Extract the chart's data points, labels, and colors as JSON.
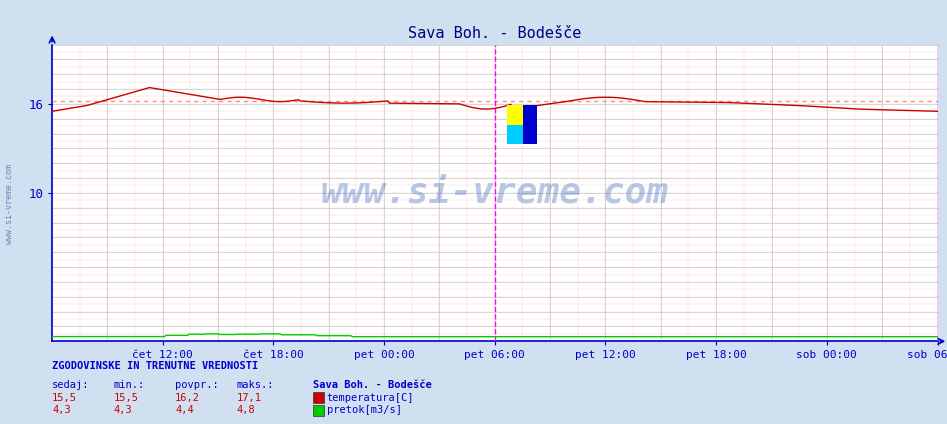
{
  "title": "Sava Boh. - Bodešče",
  "title_color": "#000080",
  "bg_color": "#d0e0f0",
  "plot_bg_color": "#ffffff",
  "grid_color_gray": "#c8c8c8",
  "grid_color_pink": "#ffcccc",
  "x_tick_labels": [
    "čet 12:00",
    "čet 18:00",
    "pet 00:00",
    "pet 06:00",
    "pet 12:00",
    "pet 18:00",
    "sob 00:00",
    "sob 06:00"
  ],
  "x_tick_positions": [
    0.125,
    0.25,
    0.375,
    0.5,
    0.625,
    0.75,
    0.875,
    1.0
  ],
  "y_ticks": [
    10,
    16
  ],
  "ylim": [
    0,
    20
  ],
  "axis_color": "#0000cc",
  "temp_color": "#cc0000",
  "flow_color": "#00cc00",
  "avg_dotted_color": "#ff8888",
  "magenta": "#ff00ff",
  "watermark": "www.si-vreme.com",
  "watermark_color": "#3366bb",
  "watermark_alpha": 0.35,
  "stats_header": "ZGODOVINSKE IN TRENUTNE VREDNOSTI",
  "stats_cols": [
    "sedaj:",
    "min.:",
    "povpr.:",
    "maks.:"
  ],
  "stats_temp": [
    "15,5",
    "15,5",
    "16,2",
    "17,1"
  ],
  "stats_flow": [
    "4,3",
    "4,3",
    "4,4",
    "4,8"
  ],
  "legend_title": "Sava Boh. - Bodešče",
  "legend_temp_label": "temperatura[C]",
  "legend_flow_label": "pretok[m3/s]",
  "avg_temp": 16.2,
  "n_points": 576,
  "temp_min": 15.5,
  "temp_max": 17.1,
  "flow_min": 4.3,
  "flow_max": 4.8
}
